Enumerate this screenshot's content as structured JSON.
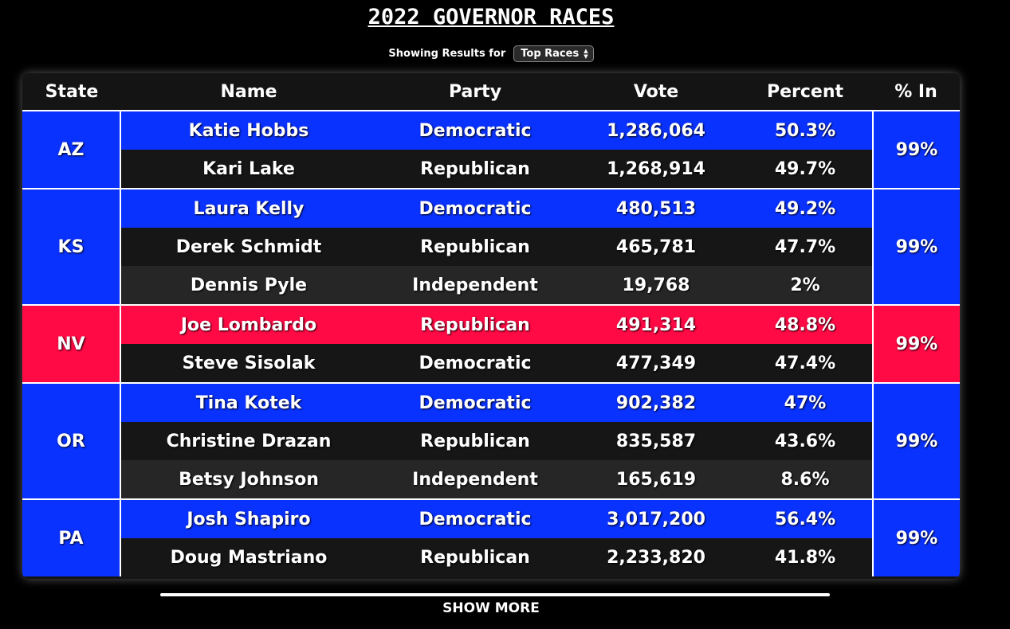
{
  "title": "2022 GOVERNOR RACES",
  "filter": {
    "label": "Showing Results for",
    "selected": "Top Races"
  },
  "headers": [
    "State",
    "Name",
    "Party",
    "Vote",
    "Percent",
    "% In"
  ],
  "colors": {
    "democratic": "#0a32ff",
    "republican": "#ff0a45"
  },
  "races": [
    {
      "state": "AZ",
      "pct_in": "99%",
      "winner_party": "democratic",
      "candidates": [
        {
          "name": "Katie Hobbs",
          "party": "Democratic",
          "vote": "1,286,064",
          "percent": "50.3%"
        },
        {
          "name": "Kari Lake",
          "party": "Republican",
          "vote": "1,268,914",
          "percent": "49.7%"
        }
      ]
    },
    {
      "state": "KS",
      "pct_in": "99%",
      "winner_party": "democratic",
      "candidates": [
        {
          "name": "Laura Kelly",
          "party": "Democratic",
          "vote": "480,513",
          "percent": "49.2%"
        },
        {
          "name": "Derek Schmidt",
          "party": "Republican",
          "vote": "465,781",
          "percent": "47.7%"
        },
        {
          "name": "Dennis Pyle",
          "party": "Independent",
          "vote": "19,768",
          "percent": "2%"
        }
      ]
    },
    {
      "state": "NV",
      "pct_in": "99%",
      "winner_party": "republican",
      "candidates": [
        {
          "name": "Joe Lombardo",
          "party": "Republican",
          "vote": "491,314",
          "percent": "48.8%"
        },
        {
          "name": "Steve Sisolak",
          "party": "Democratic",
          "vote": "477,349",
          "percent": "47.4%"
        }
      ]
    },
    {
      "state": "OR",
      "pct_in": "99%",
      "winner_party": "democratic",
      "candidates": [
        {
          "name": "Tina Kotek",
          "party": "Democratic",
          "vote": "902,382",
          "percent": "47%"
        },
        {
          "name": "Christine Drazan",
          "party": "Republican",
          "vote": "835,587",
          "percent": "43.6%"
        },
        {
          "name": "Betsy Johnson",
          "party": "Independent",
          "vote": "165,619",
          "percent": "8.6%"
        }
      ]
    },
    {
      "state": "PA",
      "pct_in": "99%",
      "winner_party": "democratic",
      "candidates": [
        {
          "name": "Josh Shapiro",
          "party": "Democratic",
          "vote": "3,017,200",
          "percent": "56.4%"
        },
        {
          "name": "Doug Mastriano",
          "party": "Republican",
          "vote": "2,233,820",
          "percent": "41.8%"
        }
      ]
    }
  ],
  "show_more_label": "SHOW MORE"
}
